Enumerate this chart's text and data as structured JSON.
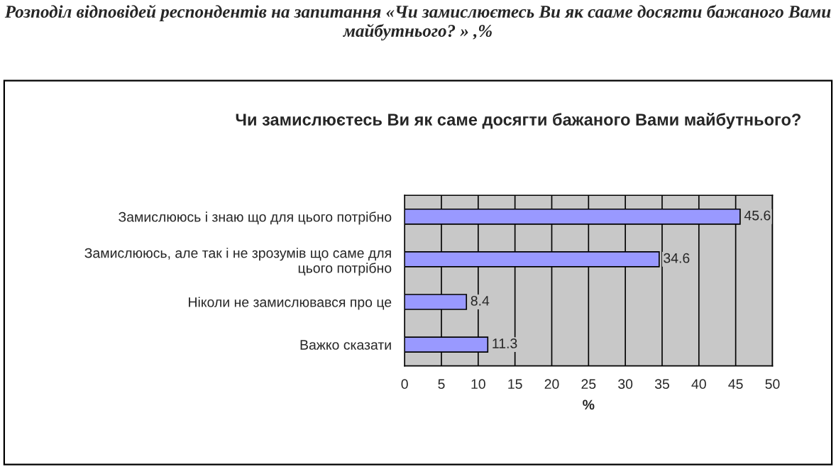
{
  "chart_data": {
    "type": "bar",
    "orientation": "horizontal",
    "title": "Розподіл відповідей респондентів на запитання «Чи замислюєтесь Ви як сааме досягти бажаного Вами майбутнього? » ,%",
    "subtitle": "Чи замислюєтесь Ви як саме досягти бажаного Вами майбутнього?",
    "categories": [
      "Замислююсь і знаю що для цього потрібно",
      "Замислююсь, але так і не зрозумів що саме для\nцього потрібно",
      "Ніколи не замислювався про це",
      "Важко сказати"
    ],
    "values": [
      45.6,
      34.6,
      8.4,
      11.3
    ],
    "color": "#9999ff",
    "data_labels": true,
    "xlabel": "%",
    "xlim": [
      0,
      50
    ],
    "xticks": [
      0,
      5,
      10,
      15,
      20,
      25,
      30,
      35,
      40,
      45,
      50
    ],
    "grid": "x"
  }
}
